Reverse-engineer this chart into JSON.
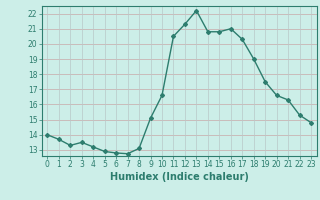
{
  "x": [
    0,
    1,
    2,
    3,
    4,
    5,
    6,
    7,
    8,
    9,
    10,
    11,
    12,
    13,
    14,
    15,
    16,
    17,
    18,
    19,
    20,
    21,
    22,
    23
  ],
  "y": [
    14.0,
    13.7,
    13.3,
    13.5,
    13.2,
    12.9,
    12.8,
    12.75,
    13.1,
    15.1,
    16.6,
    20.5,
    21.3,
    22.2,
    20.8,
    20.8,
    21.0,
    20.3,
    19.0,
    17.5,
    16.6,
    16.3,
    15.3,
    14.8
  ],
  "line_color": "#2d7d6e",
  "bg_color": "#cceee8",
  "grid_color_h": "#c8a8a8",
  "grid_color_v": "#b8c8c8",
  "xlabel": "Humidex (Indice chaleur)",
  "ylim": [
    12.6,
    22.5
  ],
  "xlim": [
    -0.5,
    23.5
  ],
  "yticks": [
    13,
    14,
    15,
    16,
    17,
    18,
    19,
    20,
    21,
    22
  ],
  "xticks": [
    0,
    1,
    2,
    3,
    4,
    5,
    6,
    7,
    8,
    9,
    10,
    11,
    12,
    13,
    14,
    15,
    16,
    17,
    18,
    19,
    20,
    21,
    22,
    23
  ],
  "marker": "D",
  "marker_size": 2,
  "line_width": 1.0,
  "xlabel_fontsize": 7,
  "tick_fontsize": 5.5
}
